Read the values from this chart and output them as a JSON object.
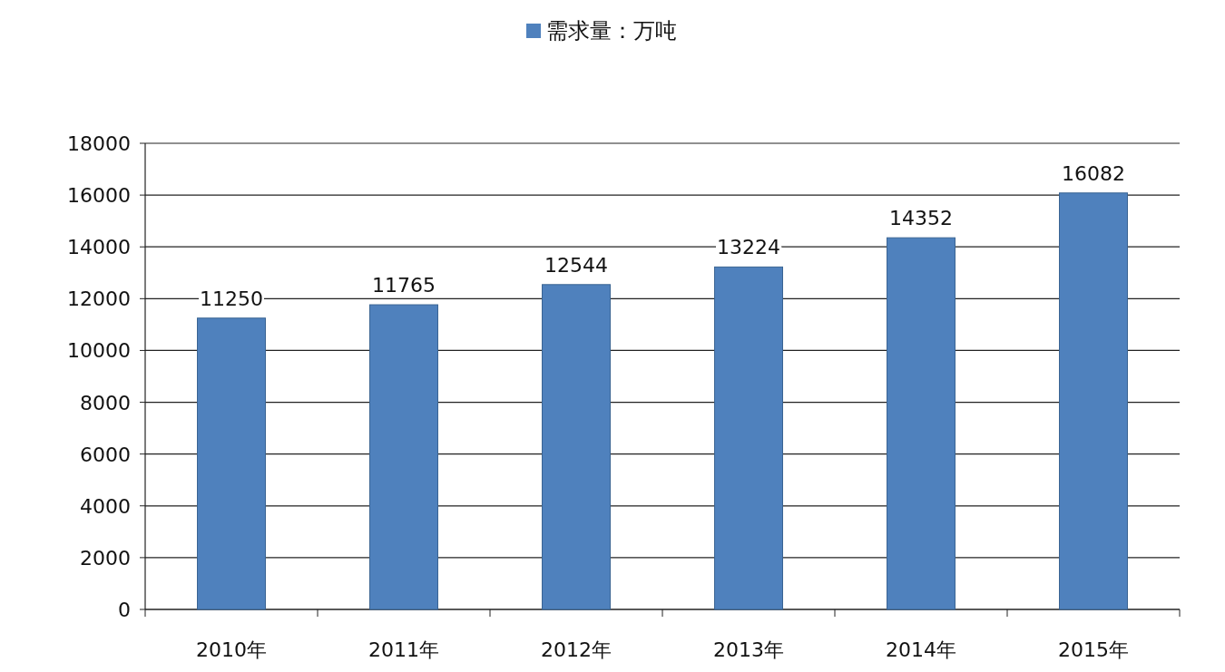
{
  "chart_data": {
    "type": "bar",
    "categories": [
      "2010年",
      "2011年",
      "2012年",
      "2013年",
      "2014年",
      "2015年"
    ],
    "series": [
      {
        "name": "需求量：万吨",
        "color": "#4f81bd",
        "values": [
          11250,
          11765,
          12544,
          13224,
          14352,
          16082
        ]
      }
    ],
    "ylim": [
      0,
      18000
    ],
    "yticks": [
      0,
      2000,
      4000,
      6000,
      8000,
      10000,
      12000,
      14000,
      16000,
      18000
    ],
    "grid": "y",
    "legend": "top",
    "data_labels": true
  }
}
